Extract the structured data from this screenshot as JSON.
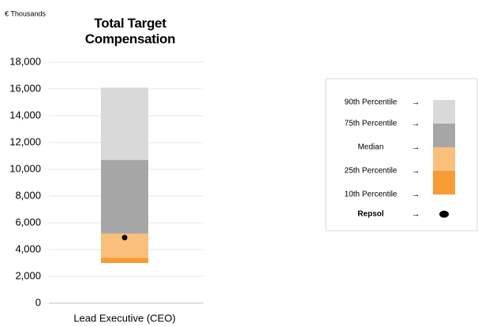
{
  "chart_data": {
    "type": "percentile-bar",
    "title": "Total Target Compensation",
    "y_label": "€ Thousands",
    "categories": [
      "Lead Executive (CEO)"
    ],
    "percentiles": [
      {
        "name": "10th Percentile",
        "value": 3000
      },
      {
        "name": "25th Percentile",
        "value": 3400
      },
      {
        "name": "Median",
        "value": 5200
      },
      {
        "name": "75th Percentile",
        "value": 10700
      },
      {
        "name": "90th Percentile",
        "value": 16100
      }
    ],
    "band_colors": [
      "#f79b35",
      "#fbbf7c",
      "#a6a6a6",
      "#d9d9d9"
    ],
    "marker": {
      "name": "Repsol",
      "value": 4900,
      "color": "#000000"
    },
    "ylim": [
      0,
      18000
    ],
    "yticks": [
      0,
      {
        "value": 2000,
        "label": "2,000"
      },
      {
        "value": 4000,
        "label": "4,000"
      },
      {
        "value": 6000,
        "label": "6,000"
      },
      {
        "value": 8000,
        "label": "8,000"
      },
      {
        "value": 10000,
        "label": "10,000"
      },
      {
        "value": 12000,
        "label": "12,000"
      },
      {
        "value": 14000,
        "label": "14,000"
      },
      {
        "value": 16000,
        "label": "16,000"
      },
      {
        "value": 18000,
        "label": "18,000"
      }
    ],
    "grid": true
  }
}
